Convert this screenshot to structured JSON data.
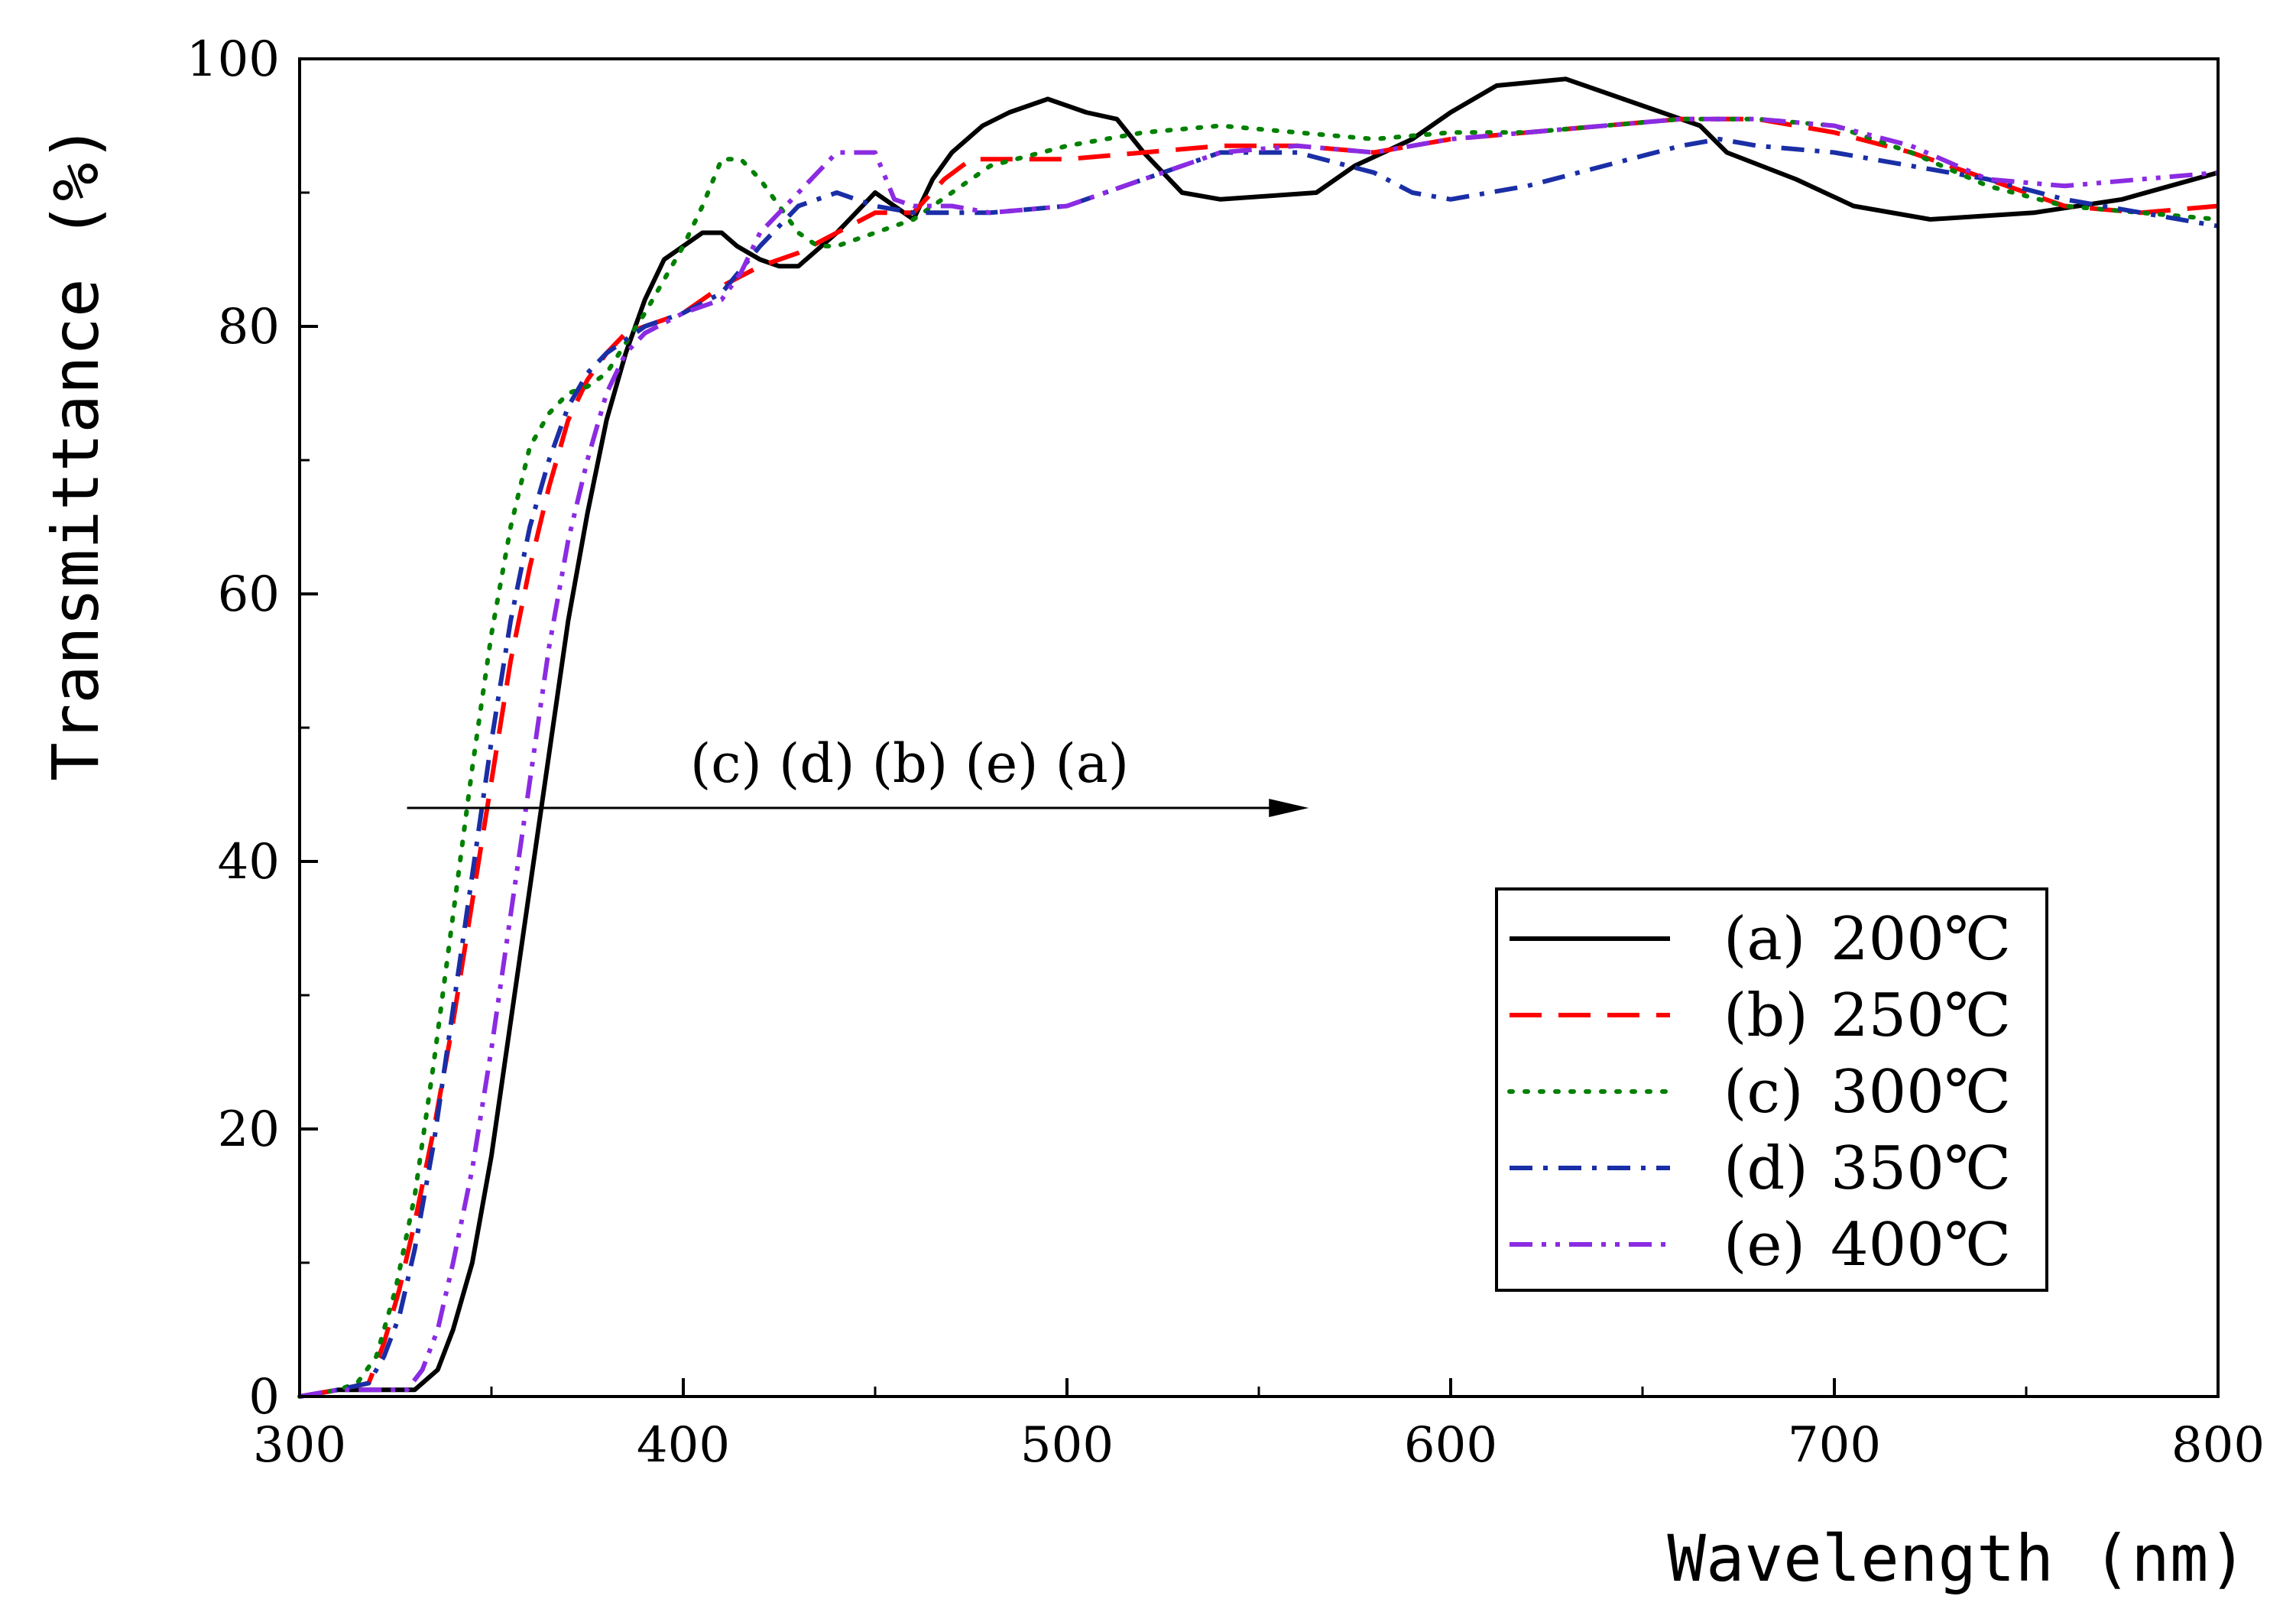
{
  "chart_data": {
    "type": "line",
    "title": "",
    "xlabel": "Wavelength (nm)",
    "ylabel": "Transmittance (%)",
    "xlim": [
      300,
      800
    ],
    "ylim": [
      0,
      100
    ],
    "x_ticks": [
      "300",
      "400",
      "500",
      "600",
      "700",
      "800"
    ],
    "y_ticks": [
      "0",
      "20",
      "40",
      "60",
      "80",
      "100"
    ],
    "x_tick_values": [
      300,
      400,
      500,
      600,
      700,
      800
    ],
    "y_tick_values": [
      0,
      20,
      40,
      60,
      80,
      100
    ],
    "grid": false,
    "legend_position": "bottom-right",
    "annotation": {
      "text": "(c) (d) (b) (e) (a)",
      "arrow_from": [
        328,
        44
      ],
      "arrow_to": [
        563,
        44
      ]
    },
    "series": [
      {
        "name": "(a) 200℃",
        "label_prefix": "(a)",
        "label_value": "200℃",
        "color": "#000000",
        "dash": "solid",
        "points": [
          [
            300,
            0
          ],
          [
            310,
            0.5
          ],
          [
            330,
            0.5
          ],
          [
            336,
            2
          ],
          [
            340,
            5
          ],
          [
            345,
            10
          ],
          [
            350,
            18
          ],
          [
            355,
            28
          ],
          [
            360,
            38
          ],
          [
            365,
            48
          ],
          [
            370,
            58
          ],
          [
            375,
            66
          ],
          [
            380,
            73
          ],
          [
            385,
            78
          ],
          [
            390,
            82
          ],
          [
            395,
            85
          ],
          [
            400,
            86
          ],
          [
            405,
            87
          ],
          [
            410,
            87
          ],
          [
            414,
            86
          ],
          [
            420,
            85
          ],
          [
            425,
            84.5
          ],
          [
            430,
            84.5
          ],
          [
            440,
            87
          ],
          [
            445,
            88.5
          ],
          [
            450,
            90
          ],
          [
            455,
            89
          ],
          [
            460,
            88
          ],
          [
            465,
            91
          ],
          [
            470,
            93
          ],
          [
            478,
            95
          ],
          [
            485,
            96
          ],
          [
            495,
            97
          ],
          [
            505,
            96
          ],
          [
            513,
            95.5
          ],
          [
            520,
            93
          ],
          [
            530,
            90
          ],
          [
            540,
            89.5
          ],
          [
            565,
            90
          ],
          [
            575,
            92
          ],
          [
            590,
            94
          ],
          [
            600,
            96
          ],
          [
            612,
            98
          ],
          [
            630,
            98.5
          ],
          [
            645,
            97
          ],
          [
            665,
            95
          ],
          [
            672,
            93
          ],
          [
            690,
            91
          ],
          [
            705,
            89
          ],
          [
            725,
            88
          ],
          [
            752,
            88.5
          ],
          [
            775,
            89.5
          ],
          [
            800,
            91.5
          ]
        ]
      },
      {
        "name": "(b) 250℃",
        "label_prefix": "(b)",
        "label_value": "250℃",
        "color": "#ff0000",
        "dash": "long-dash",
        "points": [
          [
            300,
            0
          ],
          [
            310,
            0.5
          ],
          [
            318,
            1
          ],
          [
            322,
            4
          ],
          [
            326,
            8
          ],
          [
            330,
            13
          ],
          [
            335,
            20
          ],
          [
            340,
            28
          ],
          [
            345,
            37
          ],
          [
            350,
            46
          ],
          [
            355,
            55
          ],
          [
            360,
            62
          ],
          [
            365,
            68
          ],
          [
            370,
            73
          ],
          [
            375,
            76
          ],
          [
            380,
            78
          ],
          [
            385,
            79.5
          ],
          [
            390,
            80
          ],
          [
            400,
            81
          ],
          [
            410,
            83
          ],
          [
            420,
            84.5
          ],
          [
            430,
            85.5
          ],
          [
            440,
            87
          ],
          [
            450,
            88.5
          ],
          [
            460,
            88.5
          ],
          [
            468,
            91
          ],
          [
            475,
            92.5
          ],
          [
            490,
            92.5
          ],
          [
            500,
            92.5
          ],
          [
            520,
            93
          ],
          [
            540,
            93.5
          ],
          [
            560,
            93.5
          ],
          [
            580,
            93
          ],
          [
            600,
            94
          ],
          [
            620,
            94.5
          ],
          [
            640,
            95
          ],
          [
            660,
            95.5
          ],
          [
            680,
            95.5
          ],
          [
            700,
            94.5
          ],
          [
            720,
            93
          ],
          [
            740,
            91
          ],
          [
            760,
            89
          ],
          [
            780,
            88.5
          ],
          [
            800,
            89
          ]
        ]
      },
      {
        "name": "(c) 300℃",
        "label_prefix": "(c)",
        "label_value": "300℃",
        "color": "#008000",
        "dash": "dotted",
        "points": [
          [
            300,
            0
          ],
          [
            310,
            0.5
          ],
          [
            315,
            1
          ],
          [
            320,
            3
          ],
          [
            325,
            8
          ],
          [
            330,
            15
          ],
          [
            335,
            25
          ],
          [
            340,
            36
          ],
          [
            345,
            47
          ],
          [
            350,
            57
          ],
          [
            355,
            65
          ],
          [
            360,
            71
          ],
          [
            365,
            73.5
          ],
          [
            370,
            75
          ],
          [
            375,
            75.5
          ],
          [
            380,
            76.5
          ],
          [
            390,
            81
          ],
          [
            400,
            86
          ],
          [
            405,
            89
          ],
          [
            410,
            92.5
          ],
          [
            415,
            92.5
          ],
          [
            420,
            91
          ],
          [
            425,
            89
          ],
          [
            430,
            87
          ],
          [
            435,
            86
          ],
          [
            440,
            86
          ],
          [
            450,
            87
          ],
          [
            460,
            88
          ],
          [
            470,
            90
          ],
          [
            480,
            92
          ],
          [
            500,
            93.5
          ],
          [
            520,
            94.5
          ],
          [
            540,
            95
          ],
          [
            560,
            94.5
          ],
          [
            580,
            94
          ],
          [
            600,
            94.5
          ],
          [
            620,
            94.5
          ],
          [
            640,
            95
          ],
          [
            660,
            95.5
          ],
          [
            680,
            95.5
          ],
          [
            700,
            95
          ],
          [
            720,
            93
          ],
          [
            740,
            90.5
          ],
          [
            760,
            89
          ],
          [
            780,
            88.5
          ],
          [
            800,
            88
          ]
        ]
      },
      {
        "name": "(d) 350℃",
        "label_prefix": "(d)",
        "label_value": "350℃",
        "color": "#1a2ea6",
        "dash": "dash-dot",
        "points": [
          [
            300,
            0
          ],
          [
            310,
            0.5
          ],
          [
            318,
            1
          ],
          [
            322,
            3
          ],
          [
            326,
            6
          ],
          [
            330,
            11
          ],
          [
            335,
            19
          ],
          [
            340,
            29
          ],
          [
            345,
            39
          ],
          [
            350,
            49
          ],
          [
            355,
            58
          ],
          [
            360,
            65
          ],
          [
            365,
            70
          ],
          [
            370,
            74
          ],
          [
            375,
            76.5
          ],
          [
            380,
            78
          ],
          [
            390,
            80
          ],
          [
            400,
            81
          ],
          [
            410,
            82.5
          ],
          [
            420,
            86
          ],
          [
            425,
            87.5
          ],
          [
            430,
            89
          ],
          [
            440,
            90
          ],
          [
            450,
            89
          ],
          [
            460,
            88.5
          ],
          [
            480,
            88.5
          ],
          [
            500,
            89
          ],
          [
            520,
            91
          ],
          [
            540,
            93
          ],
          [
            560,
            93
          ],
          [
            580,
            91.5
          ],
          [
            590,
            90
          ],
          [
            600,
            89.5
          ],
          [
            610,
            90
          ],
          [
            620,
            90.5
          ],
          [
            640,
            92
          ],
          [
            660,
            93.5
          ],
          [
            670,
            94
          ],
          [
            680,
            93.5
          ],
          [
            700,
            93
          ],
          [
            720,
            92
          ],
          [
            740,
            91
          ],
          [
            760,
            89.5
          ],
          [
            780,
            88.5
          ],
          [
            800,
            87.5
          ]
        ]
      },
      {
        "name": "(e) 400℃",
        "label_prefix": "(e)",
        "label_value": "400℃",
        "color": "#8b2be2",
        "dash": "dash-dot-dot",
        "points": [
          [
            300,
            0
          ],
          [
            310,
            0.5
          ],
          [
            328,
            0.5
          ],
          [
            332,
            2
          ],
          [
            336,
            5
          ],
          [
            340,
            10
          ],
          [
            345,
            17
          ],
          [
            350,
            26
          ],
          [
            355,
            36
          ],
          [
            360,
            46
          ],
          [
            365,
            56
          ],
          [
            370,
            64
          ],
          [
            375,
            70
          ],
          [
            380,
            75
          ],
          [
            385,
            78
          ],
          [
            390,
            79.5
          ],
          [
            400,
            81
          ],
          [
            410,
            82
          ],
          [
            415,
            84
          ],
          [
            420,
            87
          ],
          [
            430,
            90
          ],
          [
            440,
            93
          ],
          [
            445,
            93
          ],
          [
            450,
            93
          ],
          [
            455,
            89.5
          ],
          [
            460,
            89
          ],
          [
            470,
            89
          ],
          [
            480,
            88.5
          ],
          [
            500,
            89
          ],
          [
            520,
            91
          ],
          [
            540,
            93
          ],
          [
            560,
            93.5
          ],
          [
            580,
            93
          ],
          [
            600,
            94
          ],
          [
            620,
            94.5
          ],
          [
            640,
            95
          ],
          [
            660,
            95.5
          ],
          [
            680,
            95.5
          ],
          [
            700,
            95
          ],
          [
            720,
            93.5
          ],
          [
            740,
            91
          ],
          [
            760,
            90.5
          ],
          [
            780,
            91
          ],
          [
            800,
            91.5
          ]
        ]
      }
    ]
  }
}
